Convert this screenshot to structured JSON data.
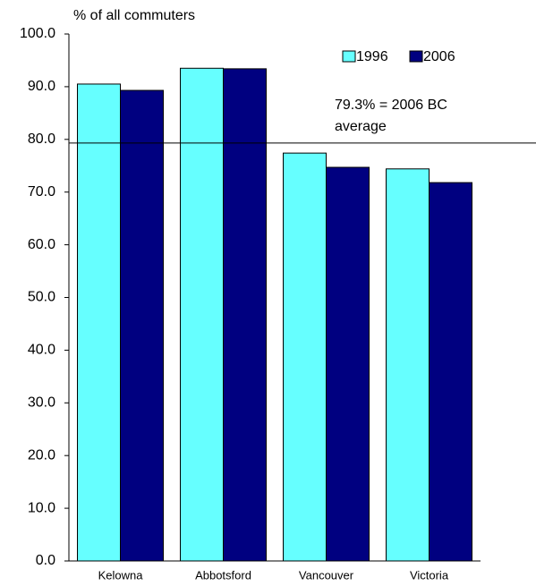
{
  "chart_data": {
    "type": "bar",
    "y_axis_label": "% of all commuters",
    "categories": [
      "Kelowna",
      "Abbotsford",
      "Vancouver",
      "Victoria"
    ],
    "series": [
      {
        "name": "1996",
        "color": "#66ffff",
        "values": [
          90.5,
          93.5,
          77.4,
          74.4
        ]
      },
      {
        "name": "2006",
        "color": "#000080",
        "values": [
          89.3,
          93.4,
          74.7,
          71.8
        ]
      }
    ],
    "ylim": [
      0,
      100
    ],
    "yticks": [
      {
        "value": 0,
        "label": "0.0"
      },
      {
        "value": 10,
        "label": "10.0"
      },
      {
        "value": 20,
        "label": "20.0"
      },
      {
        "value": 30,
        "label": "30.0"
      },
      {
        "value": 40,
        "label": "40.0"
      },
      {
        "value": 50,
        "label": "50.0"
      },
      {
        "value": 60,
        "label": "60.0"
      },
      {
        "value": 70,
        "label": "70.0"
      },
      {
        "value": 80,
        "label": "80.0"
      },
      {
        "value": 90,
        "label": "90.0"
      },
      {
        "value": 100,
        "label": "100.0"
      }
    ],
    "reference_line": {
      "value": 79.3,
      "color": "#000000",
      "annotation": [
        "79.3% = 2006 BC",
        "average"
      ],
      "annotation_color": "#000080"
    },
    "legend": "top-right",
    "grid": false
  }
}
